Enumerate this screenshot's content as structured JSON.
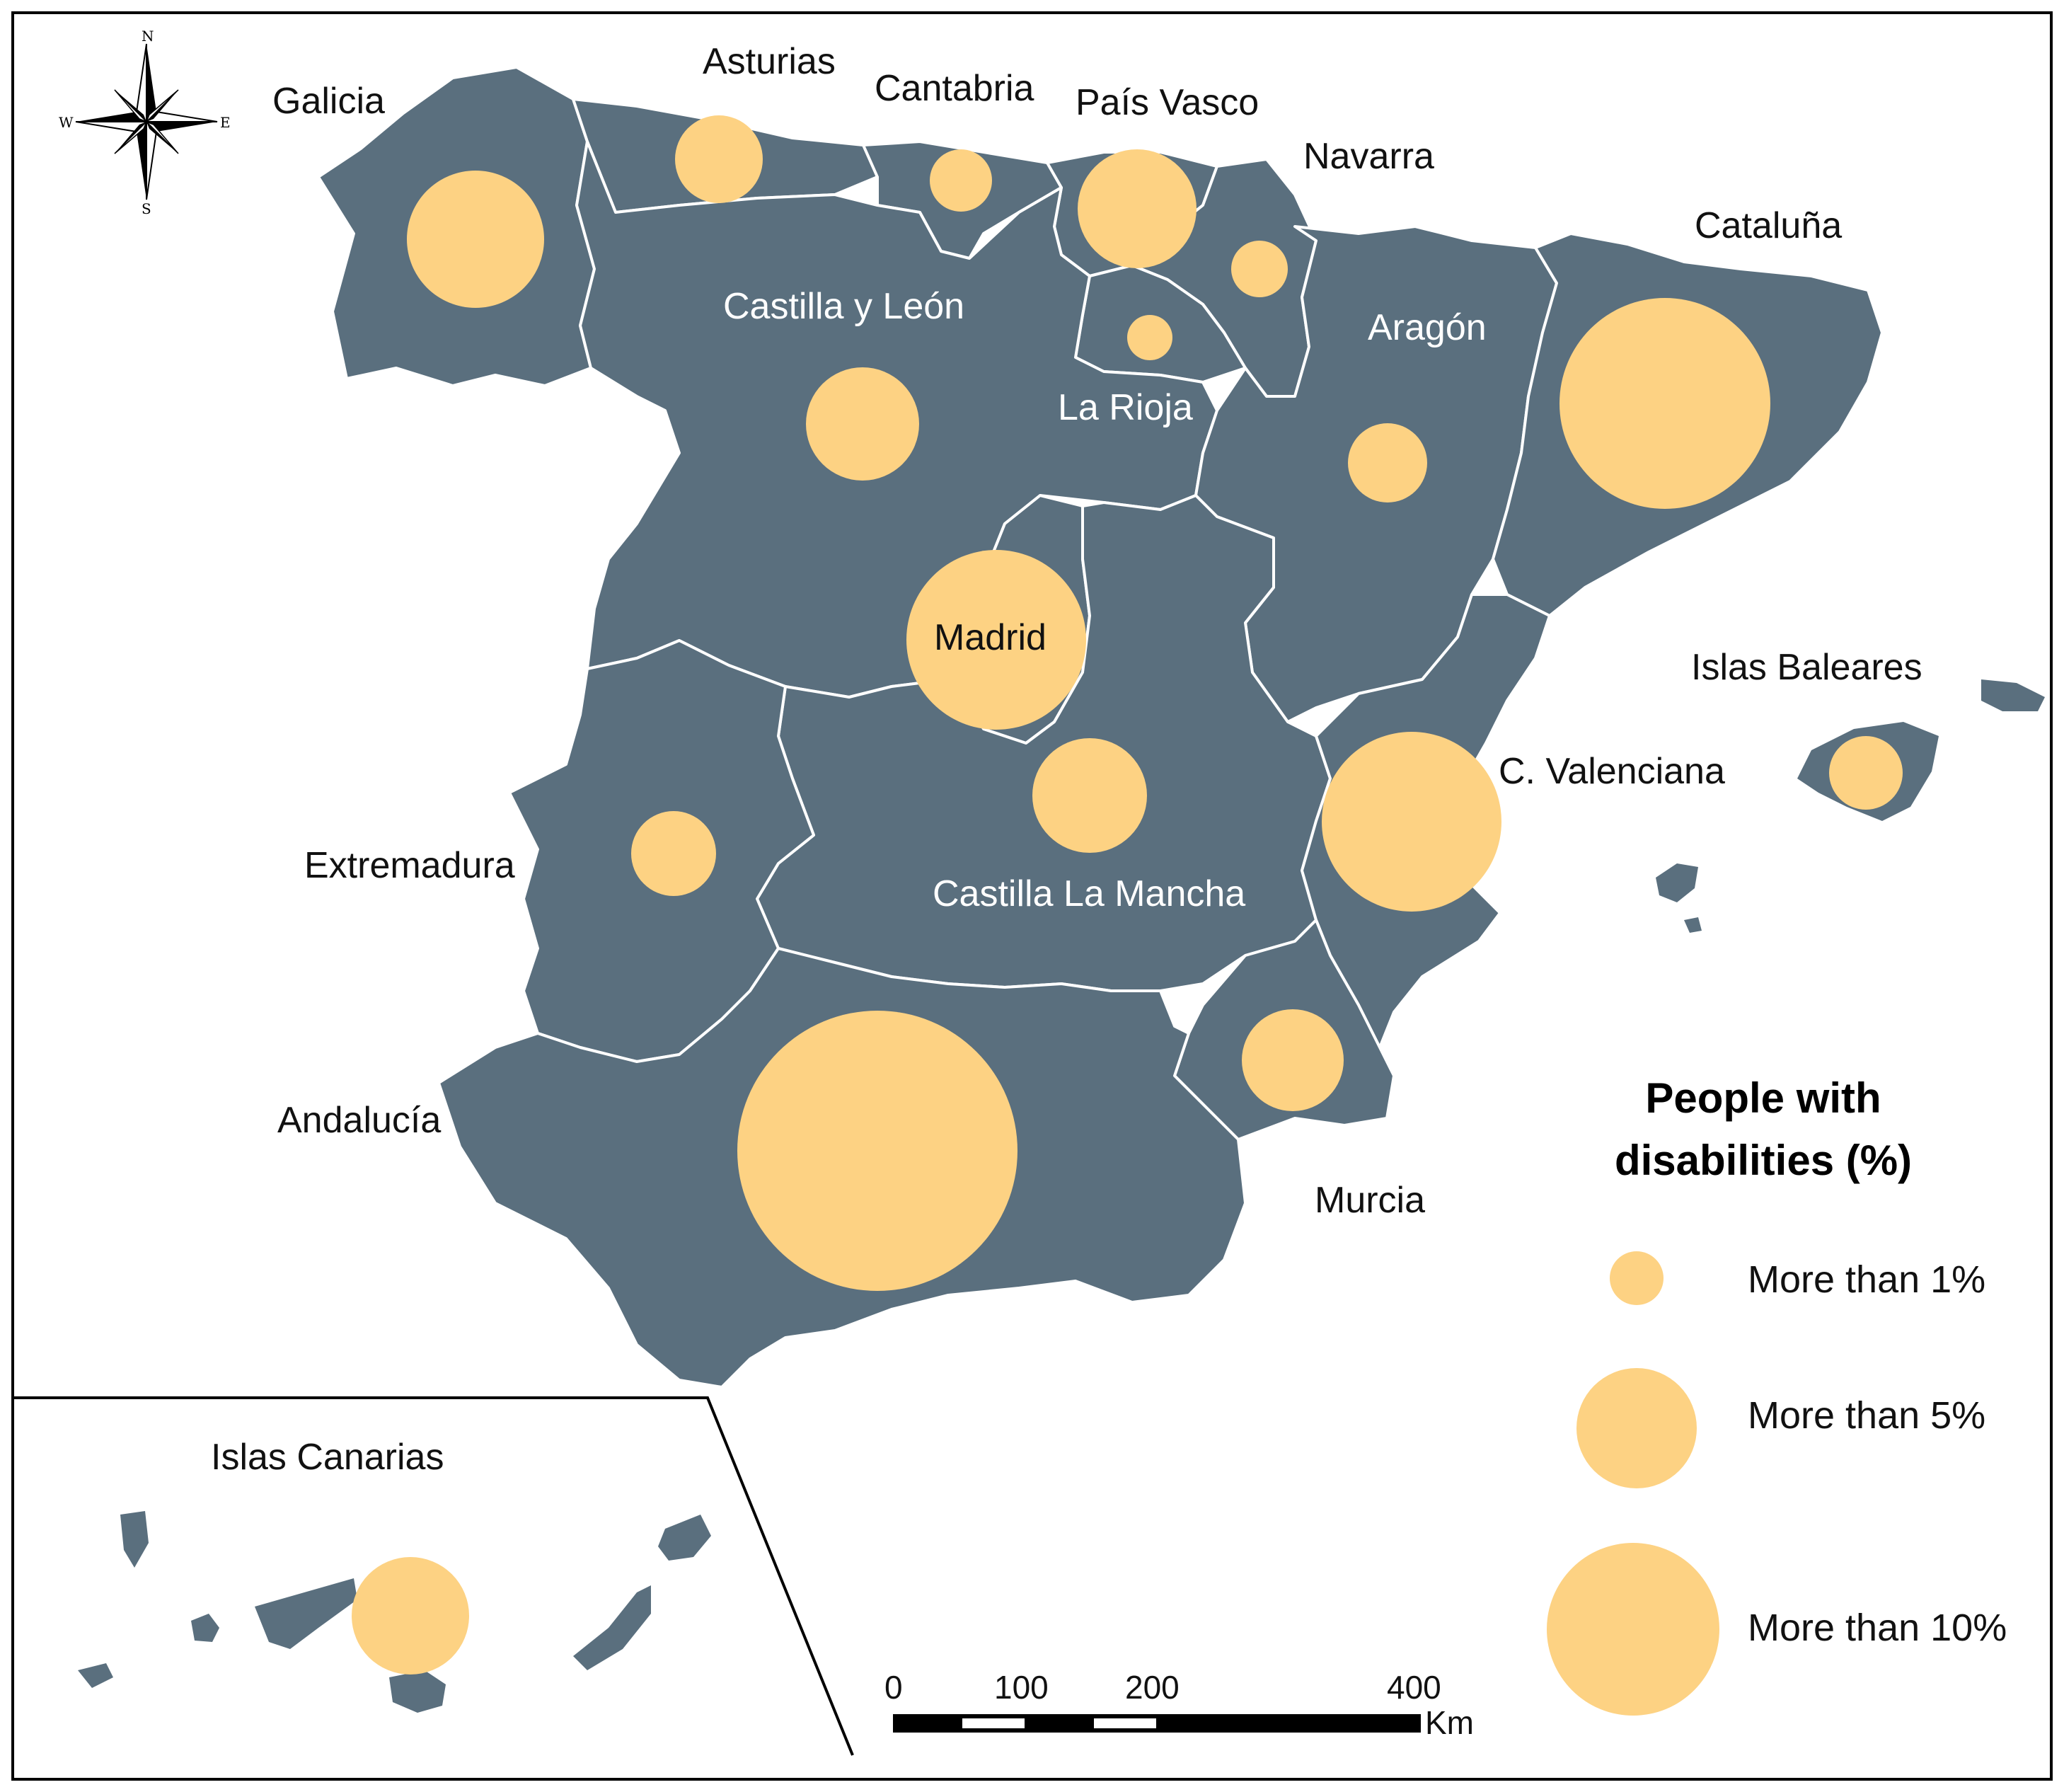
{
  "regions": [
    {
      "id": "galicia",
      "label": "Galicia",
      "level": "more-than-5"
    },
    {
      "id": "asturias",
      "label": "Asturias",
      "level": "more-than-1"
    },
    {
      "id": "cantabria",
      "label": "Cantabria",
      "level": "more-than-1"
    },
    {
      "id": "pais-vasco",
      "label": "País Vasco",
      "level": "more-than-1"
    },
    {
      "id": "navarra",
      "label": "Navarra",
      "level": "more-than-1"
    },
    {
      "id": "la-rioja",
      "label": "La Rioja",
      "level": "more-than-1"
    },
    {
      "id": "castilla-y-leon",
      "label": "Castilla y León",
      "level": "more-than-1"
    },
    {
      "id": "aragon",
      "label": "Aragón",
      "level": "more-than-1"
    },
    {
      "id": "cataluna",
      "label": "Cataluña",
      "level": "more-than-10"
    },
    {
      "id": "madrid",
      "label": "Madrid",
      "level": "more-than-10"
    },
    {
      "id": "islas-baleares",
      "label": "Islas Baleares",
      "level": "more-than-1"
    },
    {
      "id": "c-valenciana",
      "label": "C. Valenciana",
      "level": "more-than-10"
    },
    {
      "id": "castilla-la-mancha",
      "label": "Castilla La Mancha",
      "level": "more-than-1"
    },
    {
      "id": "extremadura",
      "label": "Extremadura",
      "level": "more-than-1"
    },
    {
      "id": "andalucia",
      "label": "Andalucía",
      "level": "more-than-10"
    },
    {
      "id": "murcia",
      "label": "Murcia",
      "level": "more-than-1"
    },
    {
      "id": "islas-canarias",
      "label": "Islas Canarias",
      "level": "more-than-5"
    }
  ],
  "legend": {
    "title_line1": "People with",
    "title_line2": "disabilities (%)",
    "items": [
      {
        "label": "More than 1%"
      },
      {
        "label": "More than 5%"
      },
      {
        "label": "More than 10%"
      }
    ]
  },
  "scale_bar": {
    "ticks": [
      "0",
      "100",
      "200",
      "400"
    ],
    "unit": "Km"
  },
  "compass": {
    "n": "N",
    "s": "S",
    "e": "E",
    "w": "W"
  },
  "colors": {
    "land": "#5a6f7e",
    "bubble": "#fdd283",
    "border": "#ffffff"
  }
}
